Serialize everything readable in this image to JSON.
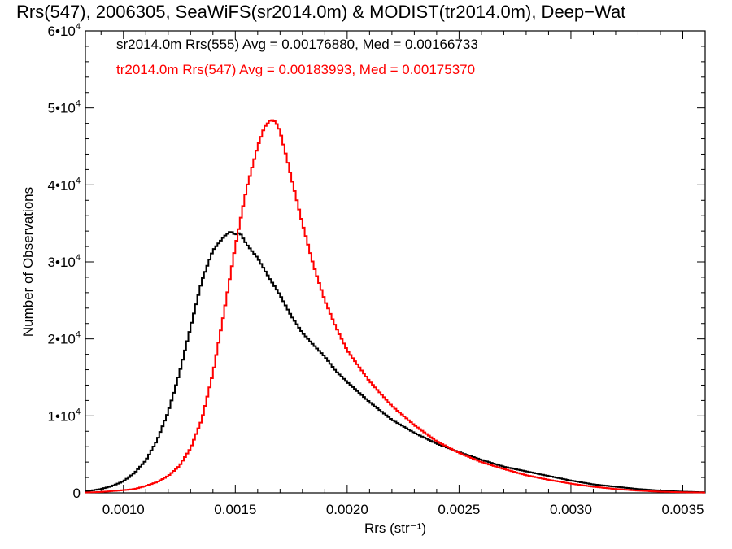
{
  "chart_data": {
    "type": "line",
    "title": "Rrs(547), 2006305, SeaWiFS(sr2014.0m) & MODIST(tr2014.0m), Deep−Wat",
    "xlabel": "Rrs (str⁻¹)",
    "ylabel": "Number of Observations",
    "xlim": [
      0.00083,
      0.0036
    ],
    "ylim": [
      0,
      60000
    ],
    "x_ticks": [
      0.001,
      0.0015,
      0.002,
      0.0025,
      0.003,
      0.0035
    ],
    "x_tick_labels": [
      "0.0010",
      "0.0015",
      "0.0020",
      "0.0025",
      "0.0030",
      "0.0035"
    ],
    "y_ticks": [
      0,
      10000,
      20000,
      30000,
      40000,
      50000,
      60000
    ],
    "y_tick_labels": [
      {
        "mant": "0",
        "exp": ""
      },
      {
        "mant": "1•10",
        "exp": "4"
      },
      {
        "mant": "2•10",
        "exp": "4"
      },
      {
        "mant": "3•10",
        "exp": "4"
      },
      {
        "mant": "4•10",
        "exp": "4"
      },
      {
        "mant": "5•10",
        "exp": "4"
      },
      {
        "mant": "6•10",
        "exp": "4"
      }
    ],
    "legend_placement": "top-left",
    "series": [
      {
        "name": "sr2014.0m Rrs(555) Avg = 0.00176880, Med = 0.00166733",
        "color": "#000000",
        "x": [
          0.00083,
          0.0009,
          0.00095,
          0.001,
          0.00105,
          0.0011,
          0.00115,
          0.0012,
          0.00125,
          0.0013,
          0.00135,
          0.0014,
          0.00145,
          0.00148,
          0.0015,
          0.00152,
          0.00155,
          0.0016,
          0.00165,
          0.0017,
          0.00175,
          0.0018,
          0.00185,
          0.0019,
          0.00195,
          0.002,
          0.0021,
          0.0022,
          0.0023,
          0.0024,
          0.0025,
          0.0026,
          0.0027,
          0.0028,
          0.0029,
          0.003,
          0.0031,
          0.0032,
          0.0033,
          0.0034,
          0.0035,
          0.0036
        ],
        "y": [
          200,
          500,
          900,
          1500,
          2600,
          4200,
          6800,
          10500,
          15500,
          21500,
          27500,
          31500,
          33300,
          34000,
          33500,
          33800,
          32300,
          30500,
          28000,
          25700,
          23000,
          20800,
          19200,
          17700,
          15800,
          14400,
          11800,
          9500,
          7800,
          6400,
          5300,
          4300,
          3400,
          2800,
          2200,
          1600,
          1100,
          800,
          500,
          300,
          150,
          80
        ]
      },
      {
        "name": "tr2014.0m Rrs(547) Avg = 0.00183993, Med = 0.00175370",
        "color": "#ff0000",
        "x": [
          0.00083,
          0.0009,
          0.001,
          0.00105,
          0.0011,
          0.00115,
          0.0012,
          0.00125,
          0.0013,
          0.00135,
          0.0014,
          0.00145,
          0.0015,
          0.00155,
          0.0016,
          0.00163,
          0.00166,
          0.00168,
          0.0017,
          0.00173,
          0.00175,
          0.0018,
          0.00185,
          0.0019,
          0.00195,
          0.002,
          0.0021,
          0.0022,
          0.0023,
          0.0024,
          0.0025,
          0.0026,
          0.0027,
          0.0028,
          0.0029,
          0.003,
          0.0031,
          0.0032,
          0.0033,
          0.0034,
          0.0035,
          0.0036
        ],
        "y": [
          50,
          120,
          350,
          500,
          900,
          1400,
          2200,
          3500,
          5800,
          9500,
          15500,
          23500,
          32000,
          39500,
          45000,
          47500,
          48500,
          48200,
          47000,
          43500,
          41000,
          35000,
          29500,
          25000,
          21500,
          18500,
          14500,
          11300,
          8800,
          6700,
          5200,
          4000,
          3100,
          2300,
          1700,
          1200,
          800,
          500,
          300,
          150,
          80,
          40
        ]
      }
    ]
  }
}
